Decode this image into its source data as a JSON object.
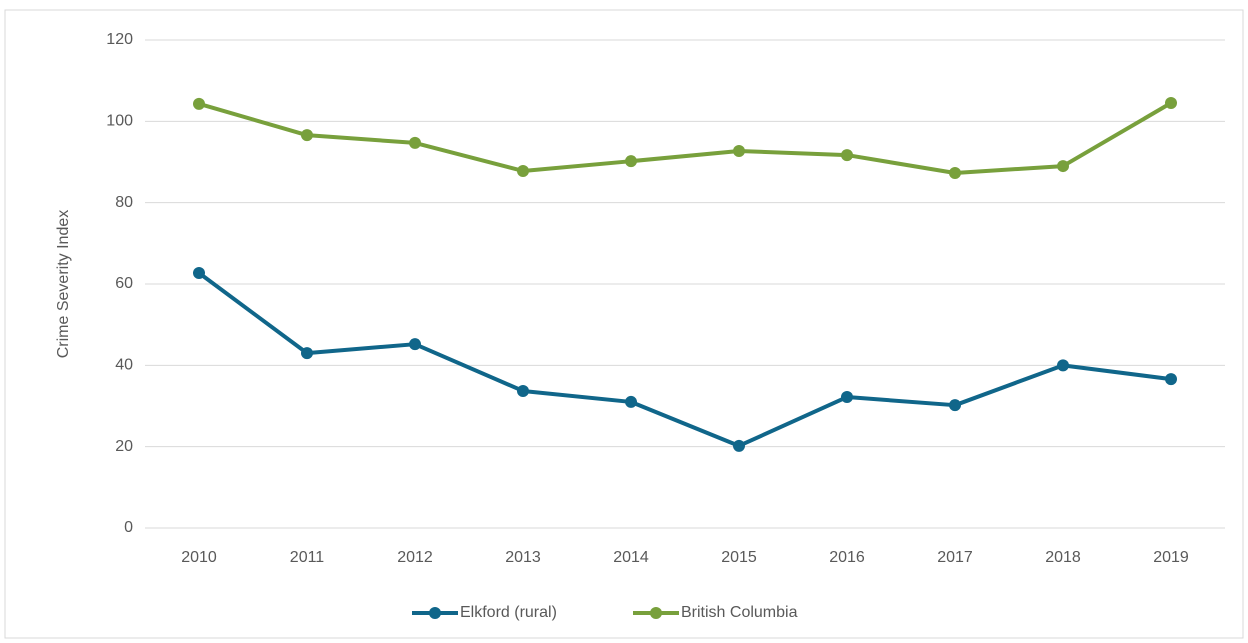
{
  "chart_data": {
    "type": "line",
    "y_label": "Crime Severity Index",
    "categories": [
      "2010",
      "2011",
      "2012",
      "2013",
      "2014",
      "2015",
      "2016",
      "2017",
      "2018",
      "2019"
    ],
    "series": [
      {
        "name": "Elkford (rural)",
        "color": "#10668a",
        "values": [
          62.7,
          43,
          45.2,
          33.7,
          31,
          20.2,
          32.2,
          30.2,
          40,
          36.6
        ]
      },
      {
        "name": "British Columbia",
        "color": "#78a03c",
        "values": [
          104.3,
          96.6,
          94.7,
          87.8,
          90.2,
          92.7,
          91.7,
          87.3,
          89,
          104.5
        ]
      }
    ],
    "ylim": [
      0,
      120
    ],
    "yticks": [
      0,
      20,
      40,
      60,
      80,
      100,
      120
    ],
    "grid": true,
    "legend": "bottom"
  }
}
